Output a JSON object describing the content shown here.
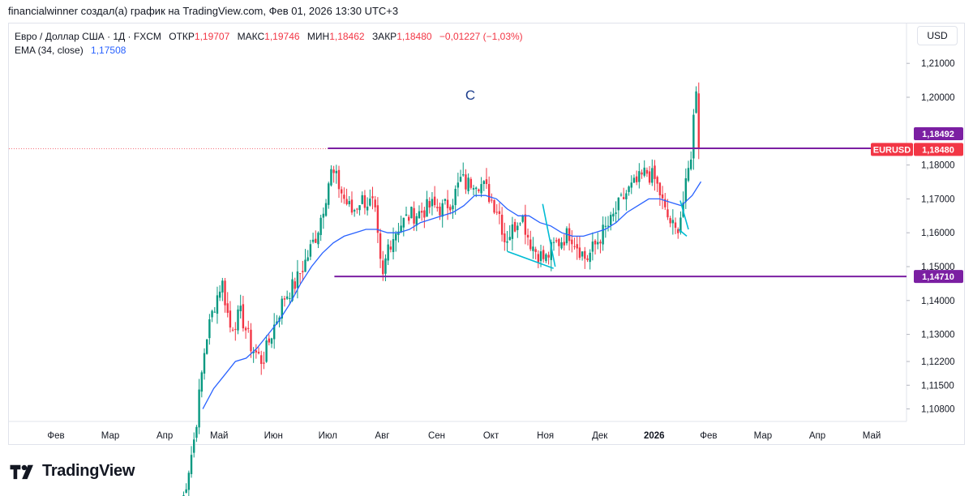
{
  "header": {
    "caption": "financialwinner создал(а) график на TradingView.com, Фев 01, 2026 13:30 UTC+3"
  },
  "legend": {
    "instrument": "Евро / Доллар США · 1Д · FXCM",
    "open_label": "ОТКР",
    "open": "1,19707",
    "high_label": "МАКС",
    "high": "1,19746",
    "low_label": "МИН",
    "low": "1,18462",
    "close_label": "ЗАКР",
    "close": "1,18480",
    "change": "−0,01227 (−1,03%)",
    "ema_label": "EMA (34, close)",
    "ema_value": "1,17508"
  },
  "currency_button": "USD",
  "footer": {
    "brand": "TradingView"
  },
  "colors": {
    "up": "#089981",
    "down": "#f23645",
    "ema": "#2962ff",
    "level": "#7b1fa2",
    "trend": "#00bcd4",
    "price_badge": "#f23645"
  },
  "chart_data": {
    "type": "candlestick",
    "title": "Евро / Доллар США · 1Д · FXCM",
    "y_ticks": [
      "1,21000",
      "1,20000",
      "1,18000",
      "1,17000",
      "1,16000",
      "1,15000",
      "1,14000",
      "1,13000",
      "1,12200",
      "1,11500",
      "1,10800"
    ],
    "y_tick_values": [
      1.21,
      1.2,
      1.18,
      1.17,
      1.16,
      1.15,
      1.14,
      1.13,
      1.122,
      1.115,
      1.108
    ],
    "x_ticks": [
      {
        "label": "Фев",
        "t": 0,
        "bold": false
      },
      {
        "label": "Мар",
        "t": 1,
        "bold": false
      },
      {
        "label": "Апр",
        "t": 2,
        "bold": false
      },
      {
        "label": "Май",
        "t": 3,
        "bold": false
      },
      {
        "label": "Июн",
        "t": 4,
        "bold": false
      },
      {
        "label": "Июл",
        "t": 5,
        "bold": false
      },
      {
        "label": "Авг",
        "t": 6,
        "bold": false
      },
      {
        "label": "Сен",
        "t": 7,
        "bold": false
      },
      {
        "label": "Окт",
        "t": 8,
        "bold": false
      },
      {
        "label": "Ноя",
        "t": 9,
        "bold": false
      },
      {
        "label": "Дек",
        "t": 10,
        "bold": false
      },
      {
        "label": "2026",
        "t": 11,
        "bold": true
      },
      {
        "label": "Фев",
        "t": 12,
        "bold": false
      },
      {
        "label": "Мар",
        "t": 13,
        "bold": false
      },
      {
        "label": "Апр",
        "t": 14,
        "bold": false
      },
      {
        "label": "Май",
        "t": 15,
        "bold": false
      }
    ],
    "price_keyframes": [
      [
        2.3,
        1.078
      ],
      [
        2.55,
        1.1
      ],
      [
        2.75,
        1.128
      ],
      [
        2.9,
        1.138
      ],
      [
        3.05,
        1.146
      ],
      [
        3.2,
        1.132
      ],
      [
        3.4,
        1.136
      ],
      [
        3.6,
        1.126
      ],
      [
        3.8,
        1.122
      ],
      [
        4.0,
        1.132
      ],
      [
        4.2,
        1.141
      ],
      [
        4.4,
        1.145
      ],
      [
        4.6,
        1.152
      ],
      [
        4.8,
        1.16
      ],
      [
        4.95,
        1.17
      ],
      [
        5.05,
        1.178
      ],
      [
        5.15,
        1.176
      ],
      [
        5.3,
        1.17
      ],
      [
        5.45,
        1.166
      ],
      [
        5.6,
        1.17
      ],
      [
        5.85,
        1.168
      ],
      [
        6.0,
        1.145
      ],
      [
        6.1,
        1.156
      ],
      [
        6.3,
        1.162
      ],
      [
        6.5,
        1.165
      ],
      [
        6.7,
        1.166
      ],
      [
        6.9,
        1.168
      ],
      [
        7.1,
        1.167
      ],
      [
        7.3,
        1.17
      ],
      [
        7.45,
        1.176
      ],
      [
        7.55,
        1.174
      ],
      [
        7.7,
        1.176
      ],
      [
        7.9,
        1.173
      ],
      [
        8.0,
        1.17
      ],
      [
        8.15,
        1.166
      ],
      [
        8.25,
        1.158
      ],
      [
        8.4,
        1.161
      ],
      [
        8.55,
        1.166
      ],
      [
        8.7,
        1.158
      ],
      [
        8.85,
        1.154
      ],
      [
        9.0,
        1.152
      ],
      [
        9.15,
        1.156
      ],
      [
        9.3,
        1.158
      ],
      [
        9.45,
        1.16
      ],
      [
        9.6,
        1.156
      ],
      [
        9.75,
        1.152
      ],
      [
        9.9,
        1.156
      ],
      [
        10.05,
        1.16
      ],
      [
        10.2,
        1.163
      ],
      [
        10.35,
        1.168
      ],
      [
        10.5,
        1.172
      ],
      [
        10.7,
        1.175
      ],
      [
        10.85,
        1.178
      ],
      [
        11.0,
        1.176
      ],
      [
        11.1,
        1.172
      ],
      [
        11.2,
        1.166
      ],
      [
        11.3,
        1.163
      ],
      [
        11.4,
        1.16
      ],
      [
        11.5,
        1.166
      ],
      [
        11.6,
        1.175
      ],
      [
        11.7,
        1.186
      ],
      [
        11.76,
        1.205
      ],
      [
        11.82,
        1.198
      ],
      [
        11.86,
        1.1848
      ]
    ],
    "ema": {
      "name": "EMA (34, close)",
      "points": [
        [
          2.7,
          1.108
        ],
        [
          2.9,
          1.114
        ],
        [
          3.1,
          1.118
        ],
        [
          3.3,
          1.122
        ],
        [
          3.5,
          1.123
        ],
        [
          3.7,
          1.126
        ],
        [
          3.9,
          1.13
        ],
        [
          4.1,
          1.134
        ],
        [
          4.3,
          1.139
        ],
        [
          4.5,
          1.145
        ],
        [
          4.7,
          1.15
        ],
        [
          4.9,
          1.154
        ],
        [
          5.1,
          1.157
        ],
        [
          5.3,
          1.159
        ],
        [
          5.5,
          1.16
        ],
        [
          5.7,
          1.161
        ],
        [
          5.9,
          1.161
        ],
        [
          6.1,
          1.16
        ],
        [
          6.3,
          1.16
        ],
        [
          6.5,
          1.161
        ],
        [
          6.7,
          1.163
        ],
        [
          6.9,
          1.164
        ],
        [
          7.1,
          1.165
        ],
        [
          7.3,
          1.166
        ],
        [
          7.5,
          1.168
        ],
        [
          7.7,
          1.171
        ],
        [
          7.9,
          1.171
        ],
        [
          8.1,
          1.17
        ],
        [
          8.3,
          1.167
        ],
        [
          8.5,
          1.165
        ],
        [
          8.7,
          1.165
        ],
        [
          8.9,
          1.163
        ],
        [
          9.1,
          1.162
        ],
        [
          9.3,
          1.16
        ],
        [
          9.5,
          1.159
        ],
        [
          9.7,
          1.159
        ],
        [
          9.9,
          1.16
        ],
        [
          10.1,
          1.161
        ],
        [
          10.3,
          1.163
        ],
        [
          10.5,
          1.166
        ],
        [
          10.7,
          1.168
        ],
        [
          10.9,
          1.17
        ],
        [
          11.1,
          1.17
        ],
        [
          11.3,
          1.169
        ],
        [
          11.5,
          1.168
        ],
        [
          11.7,
          1.171
        ],
        [
          11.86,
          1.1751
        ]
      ]
    },
    "levels": [
      {
        "name": "resistance",
        "value": 1.18492,
        "label": "1,18492",
        "t_start": 5.0
      },
      {
        "name": "support",
        "value": 1.1471,
        "label": "1,14710",
        "t_start": 5.12
      }
    ],
    "current_price": {
      "symbol": "EURUSD",
      "value": 1.1848,
      "label": "1,18480"
    },
    "trendlines": [
      {
        "from": [
          8.3,
          1.1545
        ],
        "to": [
          9.15,
          1.1495
        ]
      },
      {
        "from": [
          8.95,
          1.1685
        ],
        "to": [
          9.18,
          1.15
        ]
      },
      {
        "from": [
          11.45,
          1.161
        ],
        "to": [
          11.6,
          1.159
        ]
      },
      {
        "from": [
          11.48,
          1.1695
        ],
        "to": [
          11.63,
          1.161
        ]
      }
    ],
    "annotations": [
      {
        "text": "C",
        "t": 7.62,
        "y": 1.1993
      }
    ]
  }
}
